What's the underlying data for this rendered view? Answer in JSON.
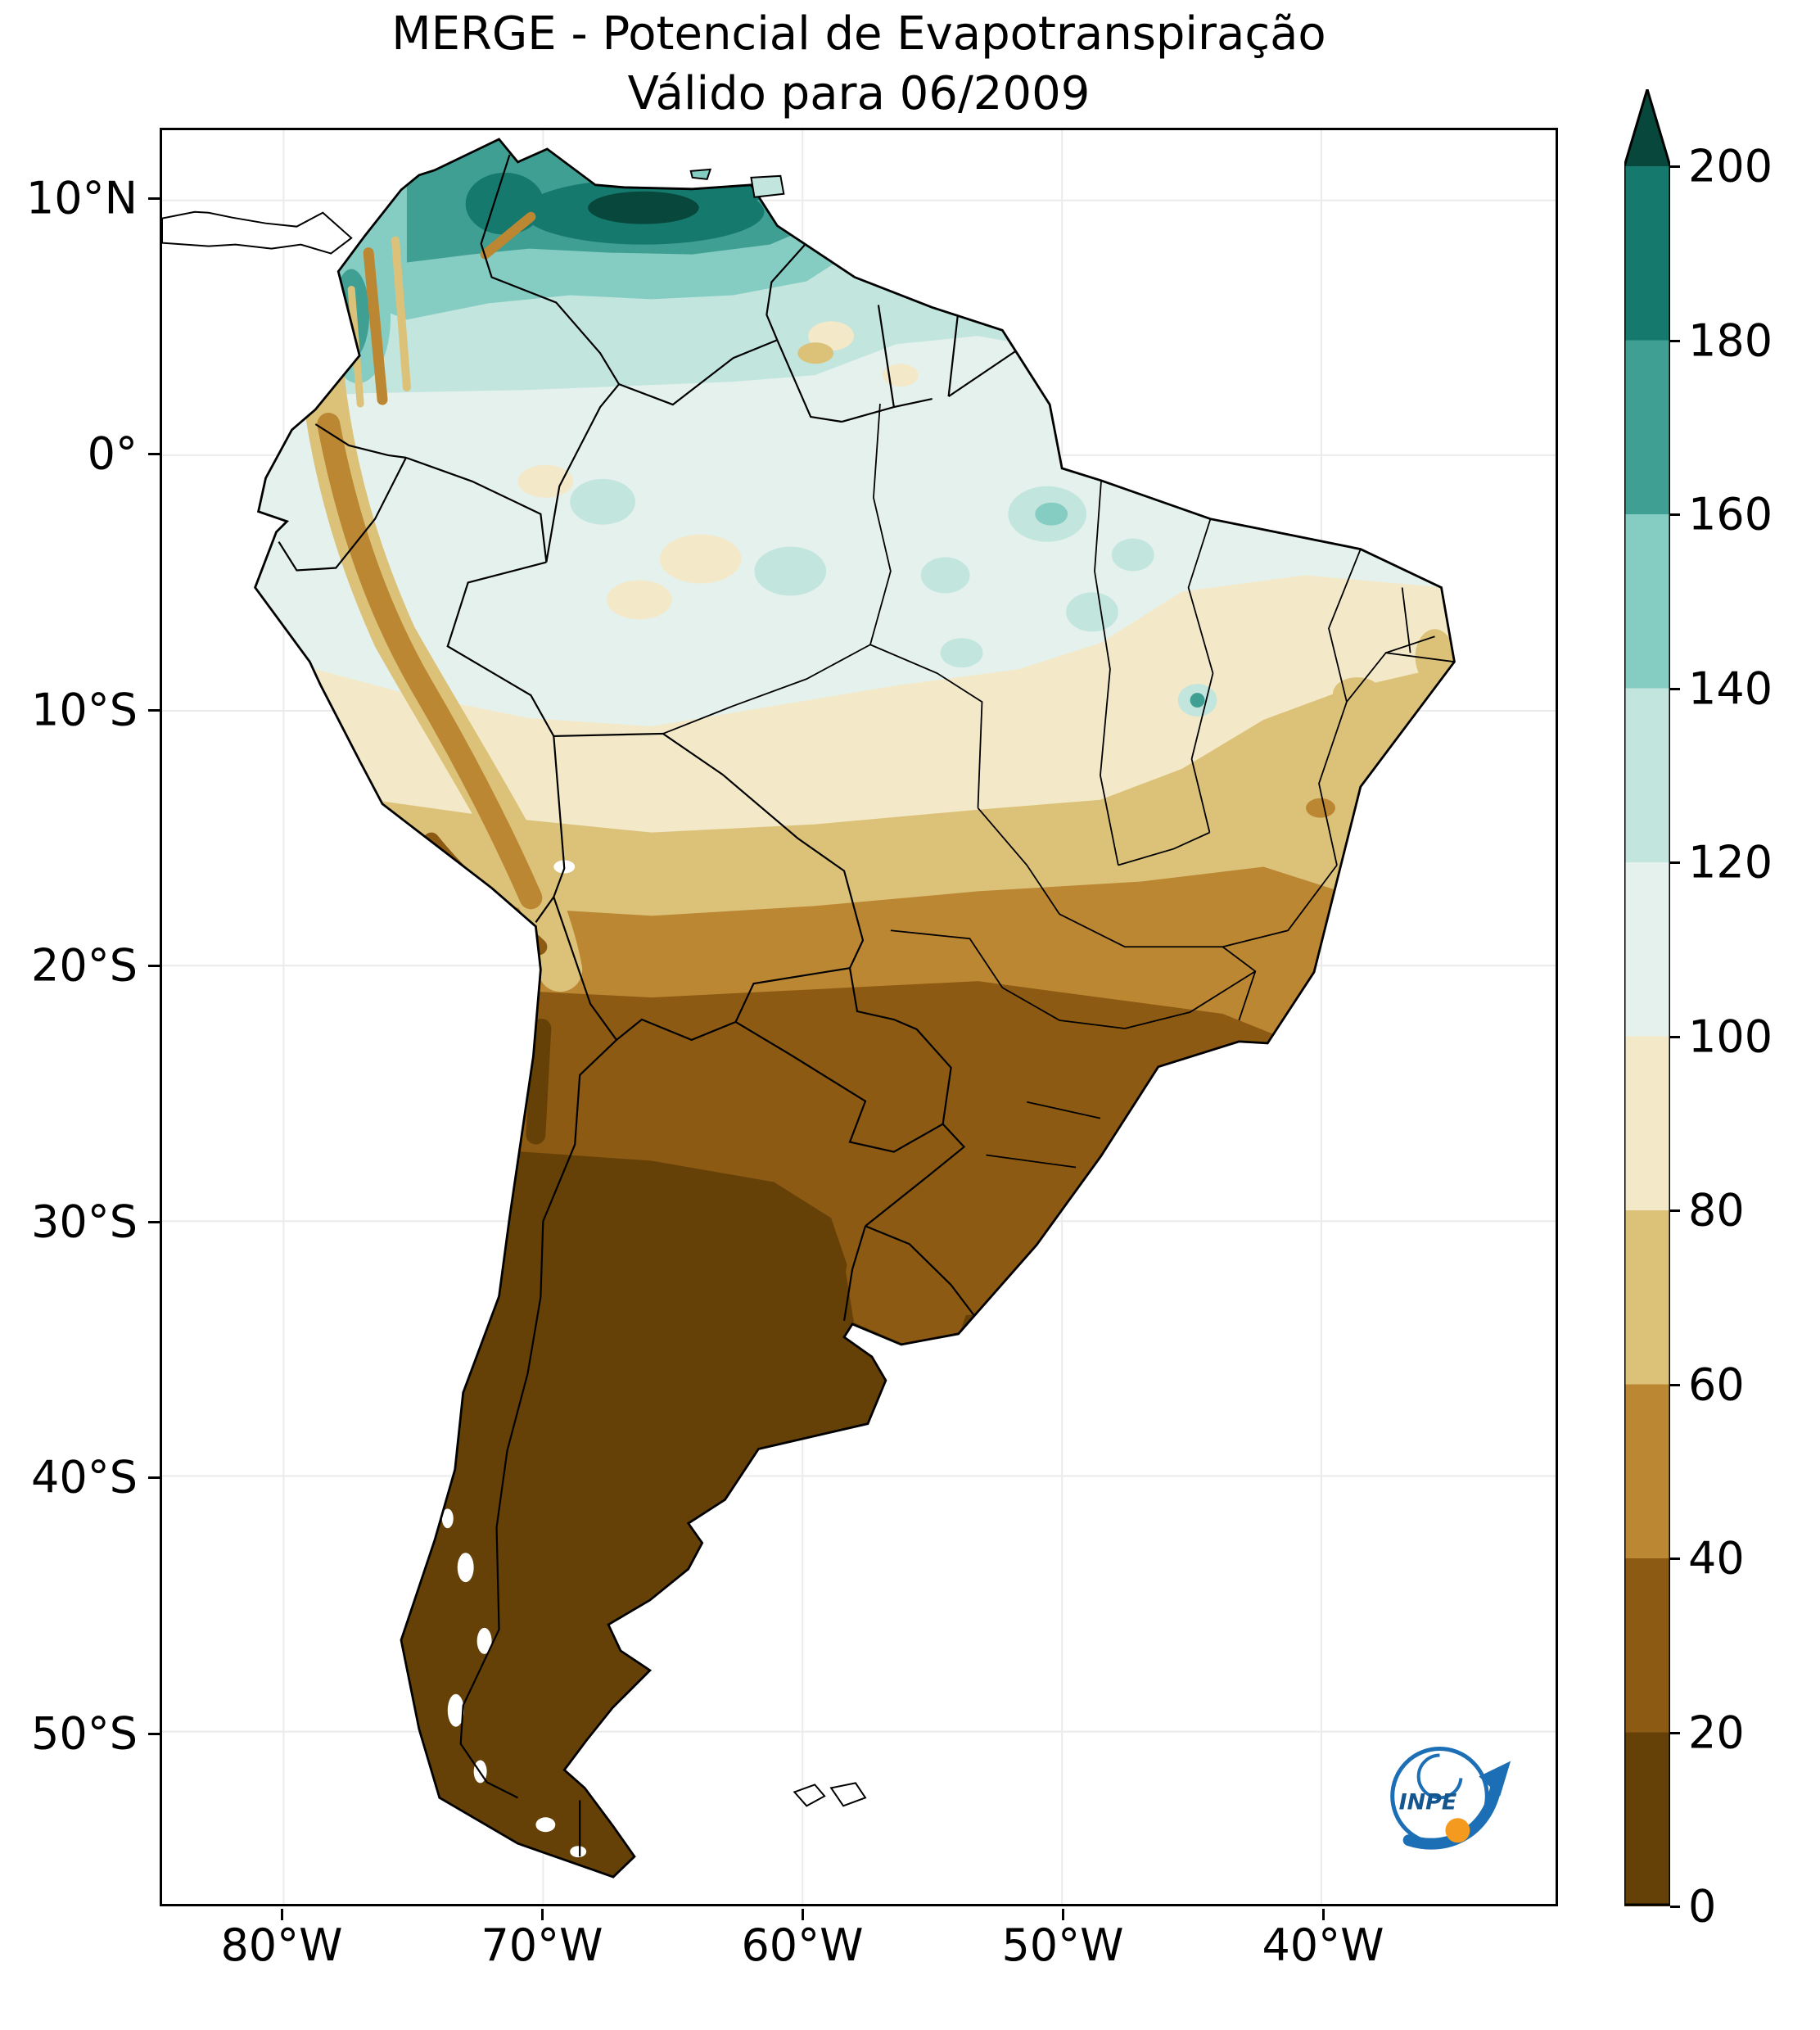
{
  "title": {
    "line1": "MERGE - Potencial de Evapotranspiração",
    "line2": "Válido para 06/2009"
  },
  "axes": {
    "lat_ticks": [
      "10°N",
      "0°",
      "10°S",
      "20°S",
      "30°S",
      "40°S",
      "50°S"
    ],
    "lon_ticks": [
      "80°W",
      "70°W",
      "60°W",
      "50°W",
      "40°W"
    ]
  },
  "colorbar": {
    "tick_labels": [
      "200",
      "180",
      "160",
      "140",
      "120",
      "100",
      "80",
      "60",
      "40",
      "20",
      "0"
    ],
    "colors": [
      "#654108",
      "#8d5a13",
      "#bc8733",
      "#dcc279",
      "#f3e9c8",
      "#e4f1ed",
      "#c2e5de",
      "#85ccc3",
      "#3f9f92",
      "#15796d",
      "#07473c"
    ]
  },
  "logo": {
    "label": "INPE"
  },
  "chart_data": {
    "type": "heatmap",
    "title": "MERGE - Potencial de Evapotranspiração",
    "subtitle": "Válido para 06/2009",
    "region": "South America",
    "x_tick_labels": [
      "80°W",
      "70°W",
      "60°W",
      "50°W",
      "40°W"
    ],
    "y_tick_labels": [
      "10°N",
      "0°",
      "10°S",
      "20°S",
      "30°S",
      "40°S",
      "50°S"
    ],
    "colorbar": {
      "min": 0,
      "max": 200,
      "step": 20,
      "extend": "max",
      "palette": [
        "#654108",
        "#8d5a13",
        "#bc8733",
        "#dcc279",
        "#f3e9c8",
        "#e4f1ed",
        "#c2e5de",
        "#85ccc3",
        "#3f9f92",
        "#15796d",
        "#07473c"
      ]
    },
    "regional_values_approx": [
      {
        "region": "Northern Venezuela Caribbean coast",
        "value_range": "180-200+"
      },
      {
        "region": "North Colombia / Venezuela llanos",
        "value_range": "140-180"
      },
      {
        "region": "Guianas and northern Amazon (5°N-3°N)",
        "value_range": "120-140"
      },
      {
        "region": "Central Amazon basin (3°N-8°S)",
        "value_range": "100-120"
      },
      {
        "region": "SW Amazon and NE Brazil interior (8°S-13°S)",
        "value_range": "80-100"
      },
      {
        "region": "Central Brazil cerrado (13°S-16°S)",
        "value_range": "60-80"
      },
      {
        "region": "Bolivia lowlands / Mato Grosso do Sul (16°S-20°S)",
        "value_range": "40-60"
      },
      {
        "region": "Paraguay, S Brazil, Uruguay, N Argentina (20°S-27°S)",
        "value_range": "20-40"
      },
      {
        "region": "Andes strip (Colombia to N Chile)",
        "value_range": "20-80"
      },
      {
        "region": "Central/S Argentina, Chile, Patagonia (south of 27°S)",
        "value_range": "0-20"
      }
    ]
  }
}
